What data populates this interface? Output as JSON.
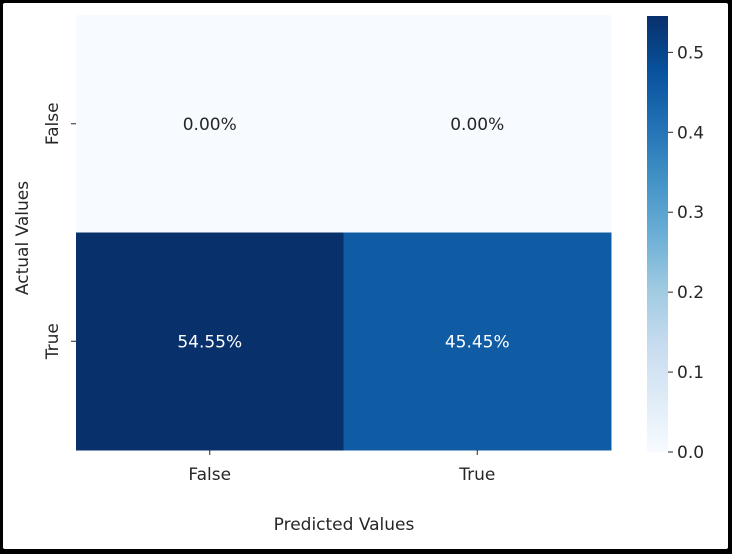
{
  "chart_data": {
    "type": "heatmap",
    "title": "",
    "xlabel": "Predicted Values",
    "ylabel": "Actual Values",
    "x_categories": [
      "False",
      "True"
    ],
    "y_categories": [
      "False",
      "True"
    ],
    "values": [
      [
        0.0,
        0.0
      ],
      [
        0.5455,
        0.4545
      ]
    ],
    "cell_labels": [
      [
        "0.00%",
        "0.00%"
      ],
      [
        "54.55%",
        "45.45%"
      ]
    ],
    "colorscale": "Blues",
    "colorbar": {
      "range": [
        0.0,
        0.5455
      ],
      "ticks": [
        0.0,
        0.1,
        0.2,
        0.3,
        0.4,
        0.5
      ],
      "tick_labels": [
        "0.0",
        "0.1",
        "0.2",
        "0.3",
        "0.4",
        "0.5"
      ]
    }
  }
}
